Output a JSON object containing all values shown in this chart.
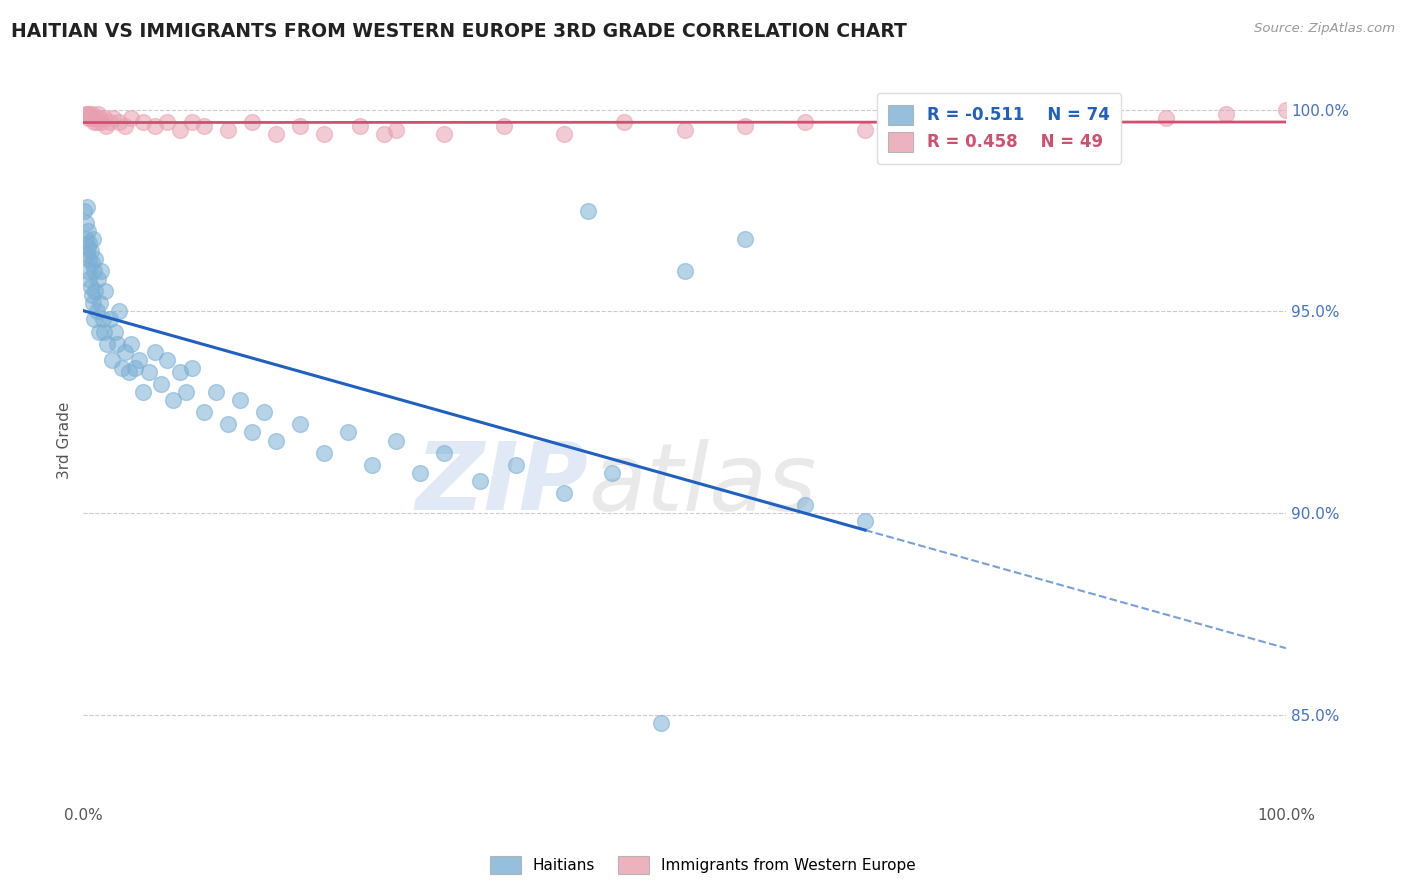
{
  "title": "HAITIAN VS IMMIGRANTS FROM WESTERN EUROPE 3RD GRADE CORRELATION CHART",
  "source_text": "Source: ZipAtlas.com",
  "ylabel": "3rd Grade",
  "xlim": [
    0.0,
    1.0
  ],
  "ylim": [
    0.828,
    1.008
  ],
  "yticks": [
    0.85,
    0.9,
    0.95,
    1.0
  ],
  "ytick_labels": [
    "85.0%",
    "90.0%",
    "95.0%",
    "100.0%"
  ],
  "blue_color": "#7bafd4",
  "pink_color": "#e8a0b0",
  "blue_line_color": "#2060c0",
  "pink_line_color": "#d05070",
  "legend_blue_r": "-0.511",
  "legend_blue_n": "74",
  "legend_pink_r": "0.458",
  "legend_pink_n": "49",
  "watermark_zip": "ZIP",
  "watermark_atlas": "atlas",
  "background_color": "#ffffff",
  "grid_color": "#cccccc",
  "blue_N": 74,
  "pink_N": 49,
  "blue_scatter_x": [
    0.001,
    0.002,
    0.002,
    0.003,
    0.003,
    0.004,
    0.004,
    0.004,
    0.005,
    0.005,
    0.005,
    0.006,
    0.006,
    0.007,
    0.007,
    0.008,
    0.008,
    0.009,
    0.009,
    0.01,
    0.01,
    0.011,
    0.012,
    0.013,
    0.014,
    0.015,
    0.016,
    0.017,
    0.018,
    0.02,
    0.022,
    0.024,
    0.026,
    0.028,
    0.03,
    0.032,
    0.035,
    0.038,
    0.04,
    0.043,
    0.046,
    0.05,
    0.055,
    0.06,
    0.065,
    0.07,
    0.075,
    0.08,
    0.085,
    0.09,
    0.1,
    0.11,
    0.12,
    0.13,
    0.14,
    0.15,
    0.16,
    0.18,
    0.2,
    0.22,
    0.24,
    0.26,
    0.28,
    0.3,
    0.33,
    0.36,
    0.4,
    0.44,
    0.5,
    0.55,
    0.6,
    0.65,
    0.48,
    0.42
  ],
  "blue_scatter_y": [
    0.975,
    0.972,
    0.968,
    0.976,
    0.964,
    0.97,
    0.966,
    0.96,
    0.967,
    0.963,
    0.958,
    0.965,
    0.956,
    0.962,
    0.954,
    0.968,
    0.952,
    0.96,
    0.948,
    0.963,
    0.955,
    0.95,
    0.958,
    0.945,
    0.952,
    0.96,
    0.948,
    0.945,
    0.955,
    0.942,
    0.948,
    0.938,
    0.945,
    0.942,
    0.95,
    0.936,
    0.94,
    0.935,
    0.942,
    0.936,
    0.938,
    0.93,
    0.935,
    0.94,
    0.932,
    0.938,
    0.928,
    0.935,
    0.93,
    0.936,
    0.925,
    0.93,
    0.922,
    0.928,
    0.92,
    0.925,
    0.918,
    0.922,
    0.915,
    0.92,
    0.912,
    0.918,
    0.91,
    0.915,
    0.908,
    0.912,
    0.905,
    0.91,
    0.96,
    0.968,
    0.902,
    0.898,
    0.848,
    0.975
  ],
  "pink_scatter_x": [
    0.002,
    0.003,
    0.004,
    0.005,
    0.006,
    0.007,
    0.008,
    0.009,
    0.01,
    0.011,
    0.012,
    0.013,
    0.015,
    0.017,
    0.019,
    0.022,
    0.025,
    0.03,
    0.035,
    0.04,
    0.05,
    0.06,
    0.07,
    0.08,
    0.09,
    0.1,
    0.12,
    0.14,
    0.16,
    0.18,
    0.2,
    0.23,
    0.26,
    0.3,
    0.35,
    0.4,
    0.45,
    0.5,
    0.6,
    0.65,
    0.7,
    0.75,
    0.8,
    0.85,
    0.9,
    0.95,
    1.0,
    0.55,
    0.25
  ],
  "pink_scatter_y": [
    0.999,
    0.999,
    0.998,
    0.999,
    0.998,
    0.999,
    0.998,
    0.997,
    0.998,
    0.997,
    0.999,
    0.998,
    0.997,
    0.998,
    0.996,
    0.997,
    0.998,
    0.997,
    0.996,
    0.998,
    0.997,
    0.996,
    0.997,
    0.995,
    0.997,
    0.996,
    0.995,
    0.997,
    0.994,
    0.996,
    0.994,
    0.996,
    0.995,
    0.994,
    0.996,
    0.994,
    0.997,
    0.995,
    0.997,
    0.995,
    0.998,
    0.996,
    0.999,
    0.997,
    0.998,
    0.999,
    1.0,
    0.996,
    0.994
  ]
}
